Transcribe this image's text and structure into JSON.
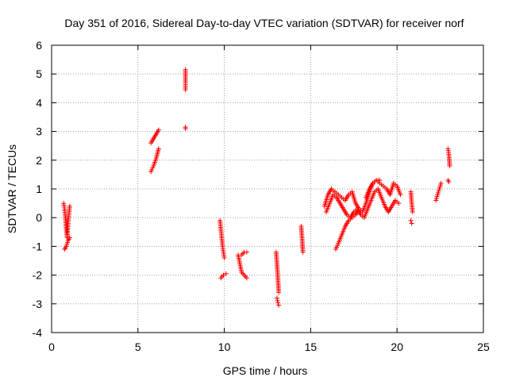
{
  "chart_data": {
    "type": "scatter",
    "title": "Day 351 of 2016, Sidereal Day-to-day VTEC variation (SDTVAR) for receiver norf",
    "xlabel": "GPS time / hours",
    "ylabel": "SDTVAR / TECUs",
    "xlim": [
      0,
      25
    ],
    "ylim": [
      -4,
      6
    ],
    "xticks": [
      0,
      5,
      10,
      15,
      20,
      25
    ],
    "yticks": [
      -4,
      -3,
      -2,
      -1,
      0,
      1,
      2,
      3,
      4,
      5,
      6
    ],
    "grid": true,
    "marker": "+",
    "color": "#ff0000",
    "segments": [
      {
        "x": [
          0.7,
          0.75,
          0.8,
          0.85,
          0.9,
          0.95,
          1.0,
          1.05
        ],
        "y": [
          0.5,
          0.3,
          0.0,
          -0.4,
          -0.7,
          -0.2,
          0.1,
          0.4
        ]
      },
      {
        "x": [
          0.75,
          0.85,
          0.95,
          1.05
        ],
        "y": [
          -1.1,
          -1.0,
          -0.8,
          -0.7
        ]
      },
      {
        "x": [
          5.75,
          5.9,
          6.05,
          6.2
        ],
        "y": [
          1.6,
          1.8,
          2.05,
          2.4
        ]
      },
      {
        "x": [
          5.75,
          5.9,
          6.05,
          6.2
        ],
        "y": [
          2.6,
          2.75,
          2.9,
          3.05
        ]
      },
      {
        "x": [
          9.75,
          9.8,
          9.85,
          9.9,
          9.95,
          10.0
        ],
        "y": [
          -0.1,
          -0.4,
          -0.7,
          -1.0,
          -1.2,
          -1.4
        ]
      },
      {
        "x": [
          9.8,
          9.95,
          10.1
        ],
        "y": [
          -2.1,
          -2.0,
          -1.95
        ]
      },
      {
        "x": [
          10.8,
          10.9,
          11.0,
          11.15,
          11.3
        ],
        "y": [
          -1.3,
          -1.6,
          -1.9,
          -2.0,
          -2.1
        ]
      },
      {
        "x": [
          11.0,
          11.15,
          11.3
        ],
        "y": [
          -1.3,
          -1.2,
          -1.2
        ]
      },
      {
        "x": [
          13.0,
          13.05,
          13.1,
          13.15
        ],
        "y": [
          -1.2,
          -1.6,
          -2.1,
          -2.6
        ]
      },
      {
        "x": [
          13.05,
          13.1,
          13.15
        ],
        "y": [
          -2.8,
          -2.95,
          -3.05
        ]
      },
      {
        "x": [
          14.45,
          14.5,
          14.55
        ],
        "y": [
          -0.3,
          -0.7,
          -1.2
        ]
      },
      {
        "x": [
          15.8,
          16.0,
          16.2,
          16.4,
          16.6,
          16.8,
          17.0,
          17.2,
          17.4,
          17.6,
          17.8,
          18.0,
          18.2,
          18.4,
          18.6,
          18.8,
          19.0,
          19.2,
          19.4,
          19.6,
          19.8,
          20.0,
          20.2
        ],
        "y": [
          0.4,
          0.8,
          1.0,
          0.9,
          0.8,
          0.7,
          0.6,
          0.8,
          0.9,
          0.5,
          0.3,
          0.2,
          0.5,
          0.9,
          1.2,
          1.3,
          1.2,
          1.1,
          1.0,
          0.8,
          1.2,
          1.1,
          0.8
        ]
      },
      {
        "x": [
          15.9,
          16.1,
          16.3,
          16.5,
          16.7,
          16.9,
          17.1,
          17.3,
          17.5,
          17.7,
          17.9,
          18.1,
          18.3,
          18.5,
          18.7,
          18.9,
          19.1,
          19.3,
          19.5,
          19.7,
          19.9,
          20.1
        ],
        "y": [
          0.2,
          0.5,
          0.8,
          0.7,
          0.5,
          0.3,
          0.1,
          0.0,
          0.2,
          0.3,
          0.1,
          0.0,
          0.3,
          0.6,
          0.9,
          1.0,
          0.7,
          0.4,
          0.2,
          0.4,
          0.6,
          0.5
        ]
      },
      {
        "x": [
          16.45,
          16.6,
          16.8,
          17.0,
          17.2,
          17.4,
          17.6,
          17.8
        ],
        "y": [
          -1.1,
          -0.9,
          -0.6,
          -0.3,
          -0.1,
          0.0,
          0.1,
          0.3
        ]
      },
      {
        "x": [
          18.2,
          18.4,
          18.6,
          18.8,
          19.0
        ],
        "y": [
          0.7,
          1.0,
          1.2,
          1.3,
          1.3
        ]
      },
      {
        "x": [
          20.8,
          20.85,
          20.9
        ],
        "y": [
          0.9,
          0.5,
          0.2
        ]
      },
      {
        "x": [
          20.8,
          20.85
        ],
        "y": [
          -0.1,
          -0.2
        ]
      },
      {
        "x": [
          22.25,
          22.35,
          22.45,
          22.55
        ],
        "y": [
          0.6,
          0.8,
          1.0,
          1.2
        ]
      },
      {
        "x": [
          22.95,
          23.0,
          23.05
        ],
        "y": [
          2.4,
          2.2,
          1.8
        ]
      },
      {
        "x": [
          22.95,
          23.0
        ],
        "y": [
          1.3,
          1.25
        ]
      },
      {
        "x": [
          7.75,
          7.75,
          7.75,
          7.75,
          7.75
        ],
        "y": [
          5.15,
          4.7,
          4.45,
          3.15,
          3.1
        ]
      }
    ]
  }
}
